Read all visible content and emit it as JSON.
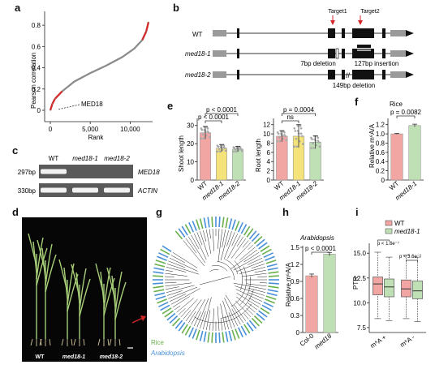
{
  "panels": {
    "a": {
      "label": "a",
      "ylabel": "Pearson correlation",
      "xlabel": "Rank",
      "xticks": [
        "0",
        "5,000",
        "10,000"
      ],
      "yticks": [
        "0.8",
        "0.6",
        "0.4",
        "0.2",
        "0"
      ],
      "annotation": "MED18",
      "colors": {
        "curve": "#8a8a8a",
        "tails": "#d62728"
      }
    },
    "b": {
      "label": "b",
      "target1": "Target1",
      "target2": "Target2",
      "rows": [
        {
          "name": "WT",
          "italic": false
        },
        {
          "name": "med18-1",
          "italic": true,
          "note_left": "7bp deletion",
          "note_right": "127bp insertion"
        },
        {
          "name": "med18-2",
          "italic": true,
          "note": "149bp deletion"
        }
      ]
    },
    "c": {
      "label": "c",
      "lanes": [
        "WT",
        "med18-1",
        "med18-2"
      ],
      "rows": [
        {
          "size": "297bp",
          "gene": "MED18",
          "bands": [
            1,
            0,
            0
          ]
        },
        {
          "size": "330bp",
          "gene": "ACTIN",
          "bands": [
            1,
            1,
            1
          ]
        }
      ]
    },
    "d": {
      "label": "d",
      "caption": [
        "WT",
        "med18-1",
        "med18-2"
      ]
    },
    "e": {
      "label": "e",
      "shoot": {
        "ylabel": "Shoot length",
        "yticks": [
          "30",
          "20",
          "10",
          "0"
        ],
        "sig": [
          "p < 0.0001",
          "p < 0.0001"
        ]
      },
      "root": {
        "ylabel": "Root length",
        "yticks": [
          "12",
          "10",
          "8",
          "6",
          "4",
          "2",
          "0"
        ],
        "sig": [
          "p = 0.0004",
          "ns"
        ]
      },
      "categories": [
        "WT",
        "med18-1",
        "med18-2"
      ]
    },
    "f": {
      "label": "f",
      "title": "Rice",
      "ylabel": "Relative m⁶A/A",
      "yticks": [
        "1.2",
        "1.0",
        "0.8",
        "0.6",
        "0.4",
        "0.2",
        "0"
      ],
      "sig": "p = 0.0082",
      "categories": [
        "WT",
        "med18-1"
      ]
    },
    "g": {
      "label": "g",
      "legend": [
        {
          "name": "Rice",
          "color": "#6ab04c"
        },
        {
          "name": "Arabidopsis",
          "color": "#4a90d9"
        }
      ]
    },
    "h": {
      "label": "h",
      "title": "Arabidopsis",
      "ylabel": "Relative m⁶A/A",
      "yticks": [
        "1.5",
        "1.2",
        "0.9",
        "0.6",
        "0.3",
        "0"
      ],
      "sig": "p < 0.0001",
      "categories": [
        "Col-0",
        "med18"
      ]
    },
    "i": {
      "label": "i",
      "ylabel": "PTR",
      "yticks": [
        "15.0",
        "12.5",
        "10.0",
        "7.5"
      ],
      "legend": [
        "WT",
        "med18-1"
      ],
      "sig": [
        "p < 1.6e⁻⁷",
        "p < 3.6e⁻²"
      ],
      "categories": [
        "m⁶A +",
        "m⁶A -"
      ]
    }
  },
  "chart_data": [
    {
      "id": "a",
      "type": "line",
      "xlabel": "Rank",
      "ylabel": "Pearson correlation",
      "xlim": [
        0,
        12500
      ],
      "ylim": [
        0,
        0.9
      ],
      "x": [
        0,
        250,
        600,
        1500,
        3000,
        5000,
        7000,
        9000,
        10500,
        11500,
        12000,
        12300
      ],
      "y": [
        0.0,
        0.06,
        0.11,
        0.18,
        0.27,
        0.35,
        0.42,
        0.5,
        0.58,
        0.66,
        0.74,
        0.83
      ]
    },
    {
      "id": "e-shoot",
      "type": "bar",
      "categories": [
        "WT",
        "med18-1",
        "med18-2"
      ],
      "values": [
        26,
        17.5,
        17
      ],
      "errors": [
        3.5,
        2,
        1.5
      ],
      "ylim": [
        0,
        33
      ],
      "colors": [
        "#f2a6a4",
        "#f4e27a",
        "#bfe0b4"
      ]
    },
    {
      "id": "e-root",
      "type": "bar",
      "categories": [
        "WT",
        "med18-1",
        "med18-2"
      ],
      "values": [
        9.5,
        9.5,
        8.2
      ],
      "errors": [
        1.2,
        2.5,
        1.4
      ],
      "ylim": [
        0,
        13
      ],
      "colors": [
        "#f2a6a4",
        "#f4e27a",
        "#bfe0b4"
      ]
    },
    {
      "id": "f",
      "type": "bar",
      "categories": [
        "WT",
        "med18-1"
      ],
      "values": [
        1.0,
        1.18
      ],
      "errors": [
        0.01,
        0.03
      ],
      "ylim": [
        0,
        1.3
      ],
      "colors": [
        "#f2a6a4",
        "#bfe0b4"
      ]
    },
    {
      "id": "h",
      "type": "bar",
      "categories": [
        "Col-0",
        "med18"
      ],
      "values": [
        1.0,
        1.38
      ],
      "errors": [
        0.03,
        0.03
      ],
      "ylim": [
        0,
        1.5
      ],
      "colors": [
        "#f2a6a4",
        "#bfe0b4"
      ]
    },
    {
      "id": "i",
      "type": "box",
      "categories": [
        "m⁶A +",
        "m⁶A -"
      ],
      "series": [
        {
          "name": "WT",
          "color": "#f2a6a4",
          "boxes": [
            [
              8.4,
              10.8,
              11.9,
              12.6,
              15.1
            ],
            [
              8.4,
              10.6,
              11.4,
              12.3,
              14.8
            ]
          ]
        },
        {
          "name": "med18-1",
          "color": "#bfe0b4",
          "boxes": [
            [
              8.2,
              10.6,
              11.6,
              12.4,
              14.6
            ],
            [
              8.1,
              10.4,
              11.2,
              12.2,
              14.6
            ]
          ]
        }
      ],
      "ylim": [
        7,
        16
      ]
    }
  ]
}
